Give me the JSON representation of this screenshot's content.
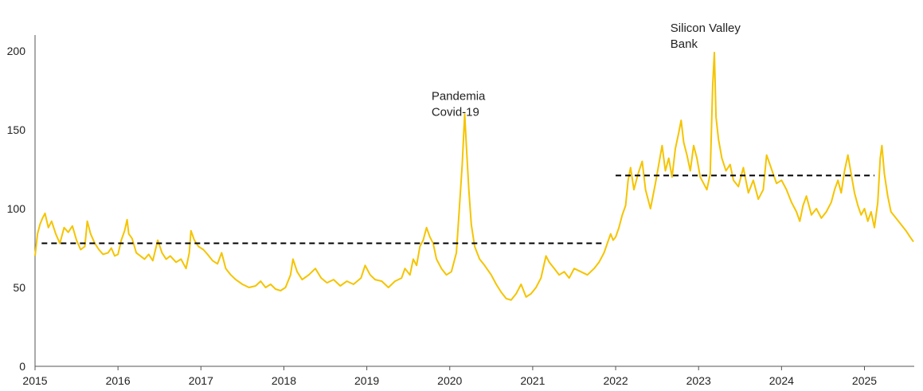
{
  "chart_data": {
    "type": "line",
    "title": "",
    "xlabel": "",
    "ylabel": "",
    "xlim": [
      2015.0,
      2025.6
    ],
    "ylim": [
      0,
      200
    ],
    "x_ticks": [
      "2015",
      "2016",
      "2017",
      "2018",
      "2019",
      "2020",
      "2021",
      "2022",
      "2023",
      "2024",
      "2025"
    ],
    "y_ticks": [
      "0",
      "50",
      "100",
      "150",
      "200"
    ],
    "grid": false,
    "legend": "none",
    "series": [
      {
        "color": "#F5C400",
        "points": [
          [
            2015.0,
            70
          ],
          [
            2015.03,
            84
          ],
          [
            2015.06,
            90
          ],
          [
            2015.09,
            94
          ],
          [
            2015.12,
            97
          ],
          [
            2015.16,
            88
          ],
          [
            2015.2,
            92
          ],
          [
            2015.25,
            84
          ],
          [
            2015.3,
            78
          ],
          [
            2015.35,
            88
          ],
          [
            2015.4,
            85
          ],
          [
            2015.45,
            89
          ],
          [
            2015.5,
            80
          ],
          [
            2015.55,
            74
          ],
          [
            2015.6,
            76
          ],
          [
            2015.63,
            92
          ],
          [
            2015.67,
            84
          ],
          [
            2015.72,
            78
          ],
          [
            2015.77,
            74
          ],
          [
            2015.82,
            71
          ],
          [
            2015.88,
            72
          ],
          [
            2015.92,
            75
          ],
          [
            2015.96,
            70
          ],
          [
            2016.0,
            71
          ],
          [
            2016.04,
            80
          ],
          [
            2016.08,
            86
          ],
          [
            2016.11,
            93
          ],
          [
            2016.13,
            84
          ],
          [
            2016.17,
            81
          ],
          [
            2016.22,
            72
          ],
          [
            2016.27,
            70
          ],
          [
            2016.32,
            68
          ],
          [
            2016.37,
            71
          ],
          [
            2016.42,
            67
          ],
          [
            2016.48,
            80
          ],
          [
            2016.53,
            72
          ],
          [
            2016.58,
            68
          ],
          [
            2016.63,
            70
          ],
          [
            2016.7,
            66
          ],
          [
            2016.76,
            68
          ],
          [
            2016.82,
            62
          ],
          [
            2016.86,
            72
          ],
          [
            2016.88,
            86
          ],
          [
            2016.92,
            80
          ],
          [
            2016.97,
            76
          ],
          [
            2017.03,
            74
          ],
          [
            2017.08,
            71
          ],
          [
            2017.14,
            67
          ],
          [
            2017.2,
            65
          ],
          [
            2017.25,
            72
          ],
          [
            2017.3,
            62
          ],
          [
            2017.36,
            58
          ],
          [
            2017.42,
            55
          ],
          [
            2017.5,
            52
          ],
          [
            2017.58,
            50
          ],
          [
            2017.66,
            51
          ],
          [
            2017.72,
            54
          ],
          [
            2017.78,
            50
          ],
          [
            2017.84,
            52
          ],
          [
            2017.9,
            49
          ],
          [
            2017.96,
            48
          ],
          [
            2018.02,
            50
          ],
          [
            2018.08,
            58
          ],
          [
            2018.11,
            68
          ],
          [
            2018.16,
            60
          ],
          [
            2018.22,
            55
          ],
          [
            2018.3,
            58
          ],
          [
            2018.38,
            62
          ],
          [
            2018.45,
            56
          ],
          [
            2018.52,
            53
          ],
          [
            2018.6,
            55
          ],
          [
            2018.68,
            51
          ],
          [
            2018.76,
            54
          ],
          [
            2018.84,
            52
          ],
          [
            2018.93,
            56
          ],
          [
            2018.98,
            64
          ],
          [
            2019.04,
            58
          ],
          [
            2019.1,
            55
          ],
          [
            2019.18,
            54
          ],
          [
            2019.26,
            50
          ],
          [
            2019.34,
            54
          ],
          [
            2019.42,
            56
          ],
          [
            2019.46,
            62
          ],
          [
            2019.52,
            58
          ],
          [
            2019.56,
            68
          ],
          [
            2019.6,
            64
          ],
          [
            2019.64,
            76
          ],
          [
            2019.68,
            80
          ],
          [
            2019.72,
            88
          ],
          [
            2019.76,
            82
          ],
          [
            2019.8,
            78
          ],
          [
            2019.84,
            68
          ],
          [
            2019.9,
            62
          ],
          [
            2019.96,
            58
          ],
          [
            2020.02,
            60
          ],
          [
            2020.08,
            72
          ],
          [
            2020.12,
            104
          ],
          [
            2020.15,
            128
          ],
          [
            2020.18,
            160
          ],
          [
            2020.2,
            140
          ],
          [
            2020.23,
            112
          ],
          [
            2020.26,
            90
          ],
          [
            2020.3,
            76
          ],
          [
            2020.36,
            68
          ],
          [
            2020.42,
            64
          ],
          [
            2020.5,
            58
          ],
          [
            2020.56,
            52
          ],
          [
            2020.62,
            47
          ],
          [
            2020.68,
            43
          ],
          [
            2020.74,
            42
          ],
          [
            2020.8,
            46
          ],
          [
            2020.86,
            52
          ],
          [
            2020.92,
            44
          ],
          [
            2020.98,
            46
          ],
          [
            2021.04,
            50
          ],
          [
            2021.1,
            56
          ],
          [
            2021.16,
            70
          ],
          [
            2021.2,
            66
          ],
          [
            2021.26,
            62
          ],
          [
            2021.32,
            58
          ],
          [
            2021.38,
            60
          ],
          [
            2021.44,
            56
          ],
          [
            2021.5,
            62
          ],
          [
            2021.58,
            60
          ],
          [
            2021.66,
            58
          ],
          [
            2021.74,
            62
          ],
          [
            2021.8,
            66
          ],
          [
            2021.86,
            72
          ],
          [
            2021.9,
            78
          ],
          [
            2021.94,
            84
          ],
          [
            2021.97,
            80
          ],
          [
            2022.0,
            82
          ],
          [
            2022.04,
            88
          ],
          [
            2022.08,
            96
          ],
          [
            2022.12,
            102
          ],
          [
            2022.15,
            118
          ],
          [
            2022.18,
            126
          ],
          [
            2022.22,
            112
          ],
          [
            2022.27,
            122
          ],
          [
            2022.32,
            130
          ],
          [
            2022.36,
            112
          ],
          [
            2022.42,
            100
          ],
          [
            2022.48,
            116
          ],
          [
            2022.52,
            128
          ],
          [
            2022.56,
            140
          ],
          [
            2022.6,
            124
          ],
          [
            2022.64,
            132
          ],
          [
            2022.68,
            120
          ],
          [
            2022.72,
            138
          ],
          [
            2022.76,
            148
          ],
          [
            2022.79,
            156
          ],
          [
            2022.82,
            142
          ],
          [
            2022.86,
            134
          ],
          [
            2022.9,
            124
          ],
          [
            2022.94,
            140
          ],
          [
            2022.98,
            132
          ],
          [
            2023.02,
            120
          ],
          [
            2023.06,
            116
          ],
          [
            2023.1,
            112
          ],
          [
            2023.14,
            122
          ],
          [
            2023.17,
            178
          ],
          [
            2023.19,
            199
          ],
          [
            2023.21,
            158
          ],
          [
            2023.24,
            144
          ],
          [
            2023.28,
            132
          ],
          [
            2023.33,
            124
          ],
          [
            2023.38,
            128
          ],
          [
            2023.42,
            118
          ],
          [
            2023.48,
            114
          ],
          [
            2023.54,
            126
          ],
          [
            2023.6,
            110
          ],
          [
            2023.66,
            118
          ],
          [
            2023.72,
            106
          ],
          [
            2023.78,
            112
          ],
          [
            2023.82,
            134
          ],
          [
            2023.86,
            128
          ],
          [
            2023.9,
            122
          ],
          [
            2023.94,
            116
          ],
          [
            2024.0,
            118
          ],
          [
            2024.06,
            112
          ],
          [
            2024.12,
            104
          ],
          [
            2024.18,
            98
          ],
          [
            2024.22,
            92
          ],
          [
            2024.26,
            102
          ],
          [
            2024.3,
            108
          ],
          [
            2024.36,
            96
          ],
          [
            2024.42,
            100
          ],
          [
            2024.48,
            94
          ],
          [
            2024.54,
            98
          ],
          [
            2024.6,
            104
          ],
          [
            2024.64,
            112
          ],
          [
            2024.68,
            118
          ],
          [
            2024.72,
            110
          ],
          [
            2024.76,
            124
          ],
          [
            2024.8,
            134
          ],
          [
            2024.84,
            122
          ],
          [
            2024.88,
            110
          ],
          [
            2024.92,
            102
          ],
          [
            2024.96,
            96
          ],
          [
            2025.0,
            100
          ],
          [
            2025.04,
            92
          ],
          [
            2025.08,
            98
          ],
          [
            2025.12,
            88
          ],
          [
            2025.16,
            104
          ],
          [
            2025.19,
            132
          ],
          [
            2025.21,
            140
          ],
          [
            2025.24,
            122
          ],
          [
            2025.28,
            108
          ],
          [
            2025.32,
            98
          ],
          [
            2025.38,
            94
          ],
          [
            2025.44,
            90
          ],
          [
            2025.5,
            86
          ],
          [
            2025.55,
            82
          ],
          [
            2025.59,
            79
          ]
        ]
      }
    ],
    "reference_lines": [
      {
        "style": "dashed",
        "color": "#000000",
        "x": [
          2015.08,
          2021.85
        ],
        "y": 78
      },
      {
        "style": "dashed",
        "color": "#000000",
        "x": [
          2022.0,
          2025.12
        ],
        "y": 121
      }
    ],
    "annotations": [
      {
        "lines": [
          "Pandemia",
          "Covid-19"
        ],
        "x": 2019.78,
        "y": 169
      },
      {
        "lines": [
          "Silicon Valley",
          "Bank"
        ],
        "x": 2022.66,
        "y": 212
      }
    ]
  }
}
